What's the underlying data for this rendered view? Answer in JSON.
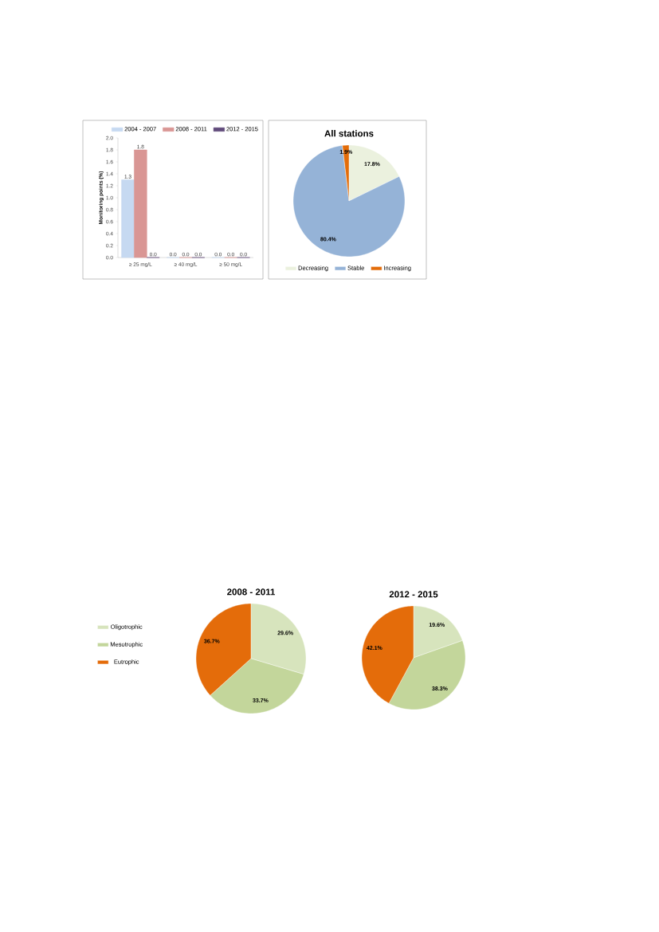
{
  "chart_data": [
    {
      "type": "bar",
      "categories": [
        "≥ 25 mg/L",
        "≥ 40 mg/L",
        "≥ 50 mg/L"
      ],
      "ylabel": "Monitoring points (%)",
      "ylim": [
        0,
        2.0
      ],
      "yticks": [
        {
          "value": 0,
          "label": "0.0"
        },
        {
          "value": 0.2,
          "label": "0.2"
        },
        {
          "value": 0.4,
          "label": "0.4"
        },
        {
          "value": 0.6,
          "label": "0.6"
        },
        {
          "value": 0.8,
          "label": "0.8"
        },
        {
          "value": 1.0,
          "label": "1.0"
        },
        {
          "value": 1.2,
          "label": "1.2"
        },
        {
          "value": 1.4,
          "label": "1.4"
        },
        {
          "value": 1.6,
          "label": "1.6"
        },
        {
          "value": 1.8,
          "label": "1.8"
        },
        {
          "value": 2.0,
          "label": "2.0"
        }
      ],
      "series": [
        {
          "name": "2004 - 2007",
          "color": "#c6d9f1",
          "values": [
            1.3,
            0,
            0
          ],
          "value_labels": [
            "1.3",
            "0.0",
            "0.0"
          ]
        },
        {
          "name": "2008 - 2011",
          "color": "#d99694",
          "values": [
            1.8,
            0,
            0
          ],
          "value_labels": [
            "1.8",
            "0.0",
            "0.0"
          ]
        },
        {
          "name": "2012 - 2015",
          "color": "#604a7b",
          "values": [
            0,
            0,
            0
          ],
          "value_labels": [
            "0.0",
            "0.0",
            "0.0"
          ]
        }
      ],
      "legend": "top"
    },
    {
      "type": "pie",
      "title": "All stations",
      "categories": [
        "Decreasing",
        "Stable",
        "Increasing"
      ],
      "values": [
        17.8,
        80.4,
        1.9
      ],
      "colors": [
        "#ebf1de",
        "#95b3d7",
        "#e36c09"
      ],
      "value_labels": [
        "17.8%",
        "80.4%",
        "1.9%"
      ],
      "legend": "bottom"
    },
    {
      "type": "pie",
      "title": "2008 - 2011",
      "categories": [
        "Oligotrophic",
        "Mesotrophic",
        "Eutrophic"
      ],
      "values": [
        29.6,
        33.7,
        36.7
      ],
      "colors": [
        "#d7e4bd",
        "#c3d69b",
        "#e46c0a"
      ],
      "value_labels": [
        "29.6%",
        "33.7%",
        "36.7%"
      ],
      "legend": "left"
    },
    {
      "type": "pie",
      "title": "2012 - 2015",
      "categories": [
        null,
        null,
        null
      ],
      "values": [
        19.6,
        38.3,
        42.1
      ],
      "colors": [
        "#d7e4bd",
        "#c3d69b",
        "#e46c0a"
      ],
      "value_labels": [
        "19.6%",
        "38.3%",
        "42.1%"
      ],
      "legend": false
    }
  ]
}
